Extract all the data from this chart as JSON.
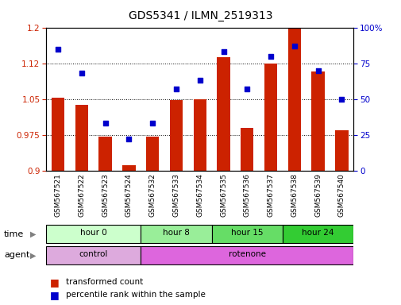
{
  "title": "GDS5341 / ILMN_2519313",
  "samples": [
    "GSM567521",
    "GSM567522",
    "GSM567523",
    "GSM567524",
    "GSM567532",
    "GSM567533",
    "GSM567534",
    "GSM567535",
    "GSM567536",
    "GSM567537",
    "GSM567538",
    "GSM567539",
    "GSM567540"
  ],
  "red_values": [
    1.053,
    1.038,
    0.971,
    0.912,
    0.972,
    1.048,
    1.05,
    1.138,
    0.99,
    1.125,
    1.198,
    1.108,
    0.985
  ],
  "blue_values": [
    85,
    68,
    33,
    22,
    33,
    57,
    63,
    83,
    57,
    80,
    87,
    70,
    50
  ],
  "red_color": "#cc2200",
  "blue_color": "#0000cc",
  "ylim_left": [
    0.9,
    1.2
  ],
  "ylim_right": [
    0,
    100
  ],
  "yticks_left": [
    0.9,
    0.975,
    1.05,
    1.125,
    1.2
  ],
  "yticks_right": [
    0,
    25,
    50,
    75,
    100
  ],
  "grid_values": [
    1.125,
    1.05,
    0.975
  ],
  "time_groups": [
    {
      "label": "hour 0",
      "start": 0,
      "end": 4,
      "color": "#ccffcc"
    },
    {
      "label": "hour 8",
      "start": 4,
      "end": 7,
      "color": "#99ee99"
    },
    {
      "label": "hour 15",
      "start": 7,
      "end": 10,
      "color": "#66dd66"
    },
    {
      "label": "hour 24",
      "start": 10,
      "end": 13,
      "color": "#33cc33"
    }
  ],
  "agent_groups": [
    {
      "label": "control",
      "start": 0,
      "end": 4,
      "color": "#ddaadd"
    },
    {
      "label": "rotenone",
      "start": 4,
      "end": 13,
      "color": "#dd66dd"
    }
  ],
  "legend_red": "transformed count",
  "legend_blue": "percentile rank within the sample",
  "bar_width": 0.55,
  "time_row_label": "time",
  "agent_row_label": "agent"
}
